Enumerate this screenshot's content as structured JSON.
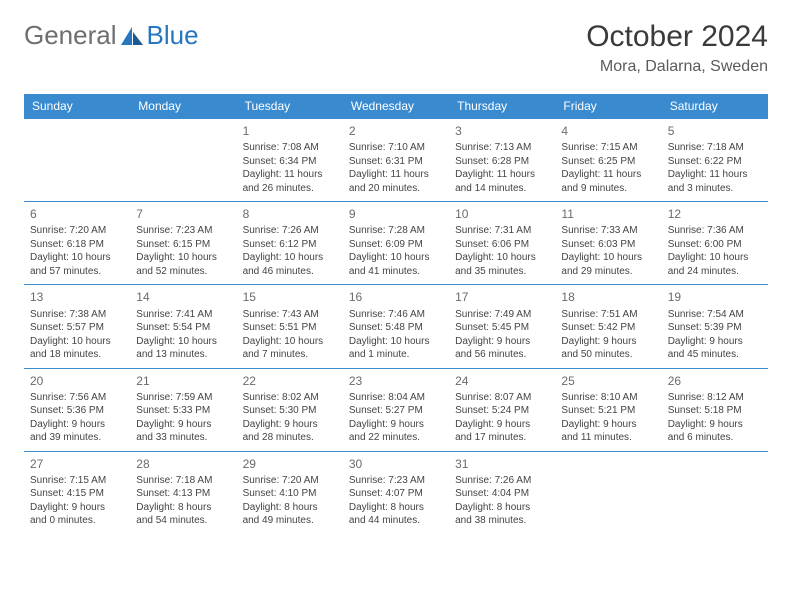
{
  "brand": {
    "general": "General",
    "blue": "Blue"
  },
  "title": "October 2024",
  "location": "Mora, Dalarna, Sweden",
  "colors": {
    "header_bg": "#3a8ad0",
    "header_text": "#ffffff",
    "border": "#3a8ad0",
    "logo_gray": "#6d6e70",
    "logo_blue": "#2676c0"
  },
  "weekdays": [
    "Sunday",
    "Monday",
    "Tuesday",
    "Wednesday",
    "Thursday",
    "Friday",
    "Saturday"
  ],
  "weeks": [
    [
      null,
      null,
      {
        "n": "1",
        "sr": "Sunrise: 7:08 AM",
        "ss": "Sunset: 6:34 PM",
        "d1": "Daylight: 11 hours",
        "d2": "and 26 minutes."
      },
      {
        "n": "2",
        "sr": "Sunrise: 7:10 AM",
        "ss": "Sunset: 6:31 PM",
        "d1": "Daylight: 11 hours",
        "d2": "and 20 minutes."
      },
      {
        "n": "3",
        "sr": "Sunrise: 7:13 AM",
        "ss": "Sunset: 6:28 PM",
        "d1": "Daylight: 11 hours",
        "d2": "and 14 minutes."
      },
      {
        "n": "4",
        "sr": "Sunrise: 7:15 AM",
        "ss": "Sunset: 6:25 PM",
        "d1": "Daylight: 11 hours",
        "d2": "and 9 minutes."
      },
      {
        "n": "5",
        "sr": "Sunrise: 7:18 AM",
        "ss": "Sunset: 6:22 PM",
        "d1": "Daylight: 11 hours",
        "d2": "and 3 minutes."
      }
    ],
    [
      {
        "n": "6",
        "sr": "Sunrise: 7:20 AM",
        "ss": "Sunset: 6:18 PM",
        "d1": "Daylight: 10 hours",
        "d2": "and 57 minutes."
      },
      {
        "n": "7",
        "sr": "Sunrise: 7:23 AM",
        "ss": "Sunset: 6:15 PM",
        "d1": "Daylight: 10 hours",
        "d2": "and 52 minutes."
      },
      {
        "n": "8",
        "sr": "Sunrise: 7:26 AM",
        "ss": "Sunset: 6:12 PM",
        "d1": "Daylight: 10 hours",
        "d2": "and 46 minutes."
      },
      {
        "n": "9",
        "sr": "Sunrise: 7:28 AM",
        "ss": "Sunset: 6:09 PM",
        "d1": "Daylight: 10 hours",
        "d2": "and 41 minutes."
      },
      {
        "n": "10",
        "sr": "Sunrise: 7:31 AM",
        "ss": "Sunset: 6:06 PM",
        "d1": "Daylight: 10 hours",
        "d2": "and 35 minutes."
      },
      {
        "n": "11",
        "sr": "Sunrise: 7:33 AM",
        "ss": "Sunset: 6:03 PM",
        "d1": "Daylight: 10 hours",
        "d2": "and 29 minutes."
      },
      {
        "n": "12",
        "sr": "Sunrise: 7:36 AM",
        "ss": "Sunset: 6:00 PM",
        "d1": "Daylight: 10 hours",
        "d2": "and 24 minutes."
      }
    ],
    [
      {
        "n": "13",
        "sr": "Sunrise: 7:38 AM",
        "ss": "Sunset: 5:57 PM",
        "d1": "Daylight: 10 hours",
        "d2": "and 18 minutes."
      },
      {
        "n": "14",
        "sr": "Sunrise: 7:41 AM",
        "ss": "Sunset: 5:54 PM",
        "d1": "Daylight: 10 hours",
        "d2": "and 13 minutes."
      },
      {
        "n": "15",
        "sr": "Sunrise: 7:43 AM",
        "ss": "Sunset: 5:51 PM",
        "d1": "Daylight: 10 hours",
        "d2": "and 7 minutes."
      },
      {
        "n": "16",
        "sr": "Sunrise: 7:46 AM",
        "ss": "Sunset: 5:48 PM",
        "d1": "Daylight: 10 hours",
        "d2": "and 1 minute."
      },
      {
        "n": "17",
        "sr": "Sunrise: 7:49 AM",
        "ss": "Sunset: 5:45 PM",
        "d1": "Daylight: 9 hours",
        "d2": "and 56 minutes."
      },
      {
        "n": "18",
        "sr": "Sunrise: 7:51 AM",
        "ss": "Sunset: 5:42 PM",
        "d1": "Daylight: 9 hours",
        "d2": "and 50 minutes."
      },
      {
        "n": "19",
        "sr": "Sunrise: 7:54 AM",
        "ss": "Sunset: 5:39 PM",
        "d1": "Daylight: 9 hours",
        "d2": "and 45 minutes."
      }
    ],
    [
      {
        "n": "20",
        "sr": "Sunrise: 7:56 AM",
        "ss": "Sunset: 5:36 PM",
        "d1": "Daylight: 9 hours",
        "d2": "and 39 minutes."
      },
      {
        "n": "21",
        "sr": "Sunrise: 7:59 AM",
        "ss": "Sunset: 5:33 PM",
        "d1": "Daylight: 9 hours",
        "d2": "and 33 minutes."
      },
      {
        "n": "22",
        "sr": "Sunrise: 8:02 AM",
        "ss": "Sunset: 5:30 PM",
        "d1": "Daylight: 9 hours",
        "d2": "and 28 minutes."
      },
      {
        "n": "23",
        "sr": "Sunrise: 8:04 AM",
        "ss": "Sunset: 5:27 PM",
        "d1": "Daylight: 9 hours",
        "d2": "and 22 minutes."
      },
      {
        "n": "24",
        "sr": "Sunrise: 8:07 AM",
        "ss": "Sunset: 5:24 PM",
        "d1": "Daylight: 9 hours",
        "d2": "and 17 minutes."
      },
      {
        "n": "25",
        "sr": "Sunrise: 8:10 AM",
        "ss": "Sunset: 5:21 PM",
        "d1": "Daylight: 9 hours",
        "d2": "and 11 minutes."
      },
      {
        "n": "26",
        "sr": "Sunrise: 8:12 AM",
        "ss": "Sunset: 5:18 PM",
        "d1": "Daylight: 9 hours",
        "d2": "and 6 minutes."
      }
    ],
    [
      {
        "n": "27",
        "sr": "Sunrise: 7:15 AM",
        "ss": "Sunset: 4:15 PM",
        "d1": "Daylight: 9 hours",
        "d2": "and 0 minutes."
      },
      {
        "n": "28",
        "sr": "Sunrise: 7:18 AM",
        "ss": "Sunset: 4:13 PM",
        "d1": "Daylight: 8 hours",
        "d2": "and 54 minutes."
      },
      {
        "n": "29",
        "sr": "Sunrise: 7:20 AM",
        "ss": "Sunset: 4:10 PM",
        "d1": "Daylight: 8 hours",
        "d2": "and 49 minutes."
      },
      {
        "n": "30",
        "sr": "Sunrise: 7:23 AM",
        "ss": "Sunset: 4:07 PM",
        "d1": "Daylight: 8 hours",
        "d2": "and 44 minutes."
      },
      {
        "n": "31",
        "sr": "Sunrise: 7:26 AM",
        "ss": "Sunset: 4:04 PM",
        "d1": "Daylight: 8 hours",
        "d2": "and 38 minutes."
      },
      null,
      null
    ]
  ]
}
